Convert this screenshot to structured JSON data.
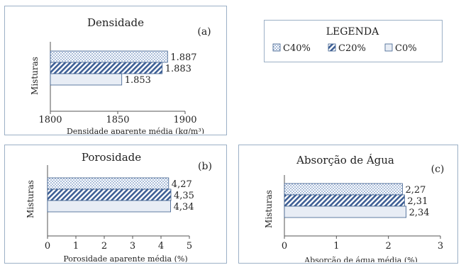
{
  "legend": {
    "title": "LEGENDA",
    "items": [
      {
        "label": "C40%",
        "pattern": "dots"
      },
      {
        "label": "C20%",
        "pattern": "stripes"
      },
      {
        "label": "C0%",
        "pattern": "plain"
      }
    ]
  },
  "colors": {
    "bar_fill": "#ffffff",
    "bar_stroke": "#3b5d8c",
    "dots": "#6f8fbf",
    "stripes": "#3e5f95",
    "plain": "#e8edf5",
    "frame": "#9cb0c6"
  },
  "chart_data": [
    {
      "type": "bar",
      "orientation": "horizontal",
      "title": "Densidade",
      "panel_label": "(a)",
      "ylabel": "Misturas",
      "xlabel": "Densidade aparente média (kg/m³)",
      "xlim": [
        1800,
        1900
      ],
      "xticks": [
        "1800",
        "1850",
        "1900"
      ],
      "xtick_values": [
        1800,
        1850,
        1900
      ],
      "series": [
        {
          "name": "C40%",
          "pattern": "dots",
          "value": 1887,
          "label": "1.887"
        },
        {
          "name": "C20%",
          "pattern": "stripes",
          "value": 1883,
          "label": "1.883"
        },
        {
          "name": "C0%",
          "pattern": "plain",
          "value": 1853,
          "label": "1.853"
        }
      ]
    },
    {
      "type": "bar",
      "orientation": "horizontal",
      "title": "Porosidade",
      "panel_label": "(b)",
      "ylabel": "Misturas",
      "xlabel": "Porosidade aparente média (%)",
      "xlim": [
        0,
        5
      ],
      "xticks": [
        "0",
        "1",
        "2",
        "3",
        "4",
        "5"
      ],
      "xtick_values": [
        0,
        1,
        2,
        3,
        4,
        5
      ],
      "series": [
        {
          "name": "C40%",
          "pattern": "dots",
          "value": 4.27,
          "label": "4,27"
        },
        {
          "name": "C20%",
          "pattern": "stripes",
          "value": 4.35,
          "label": "4,35"
        },
        {
          "name": "C0%",
          "pattern": "plain",
          "value": 4.34,
          "label": "4,34"
        }
      ]
    },
    {
      "type": "bar",
      "orientation": "horizontal",
      "title": "Absorção de Água",
      "panel_label": "(c)",
      "ylabel": "Misturas",
      "xlabel": "Absorção de água média (%)",
      "xlim": [
        0,
        3
      ],
      "xticks": [
        "0",
        "1",
        "2",
        "3"
      ],
      "xtick_values": [
        0,
        1,
        2,
        3
      ],
      "series": [
        {
          "name": "C40%",
          "pattern": "dots",
          "value": 2.27,
          "label": "2,27"
        },
        {
          "name": "C20%",
          "pattern": "stripes",
          "value": 2.31,
          "label": "2,31"
        },
        {
          "name": "C0%",
          "pattern": "plain",
          "value": 2.34,
          "label": "2,34"
        }
      ]
    }
  ]
}
